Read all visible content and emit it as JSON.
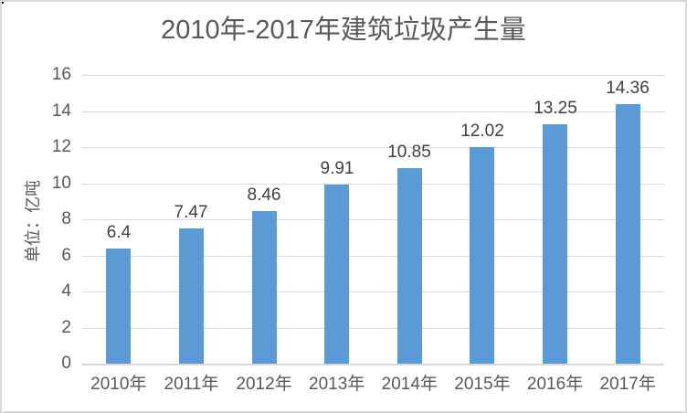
{
  "frame": {
    "background": "#FFFFFF",
    "border_color": "#D9D9D9"
  },
  "chart_data": {
    "type": "bar",
    "title": "2010年-2017年建筑垃圾产生量",
    "ylabel": "单位：亿吨",
    "xlabel": "",
    "categories": [
      "2010年",
      "2011年",
      "2012年",
      "2013年",
      "2014年",
      "2015年",
      "2016年",
      "2017年"
    ],
    "values": [
      6.4,
      7.47,
      8.46,
      9.91,
      10.85,
      12.02,
      13.25,
      14.36
    ],
    "data_labels": [
      "6.4",
      "7.47",
      "8.46",
      "9.91",
      "10.85",
      "12.02",
      "13.25",
      "14.36"
    ],
    "ylim": [
      0,
      16
    ],
    "yticks": [
      0,
      2,
      4,
      6,
      8,
      10,
      12,
      14,
      16
    ],
    "grid": "horizontal",
    "legend": "none",
    "colors": {
      "bar": "#5B9BD5",
      "gridline": "#D9D9D9",
      "axis_line": "#D9D9D9",
      "title_text": "#595959",
      "tick_text": "#595959",
      "data_label_text": "#404040",
      "ylabel_text": "#595959"
    }
  }
}
